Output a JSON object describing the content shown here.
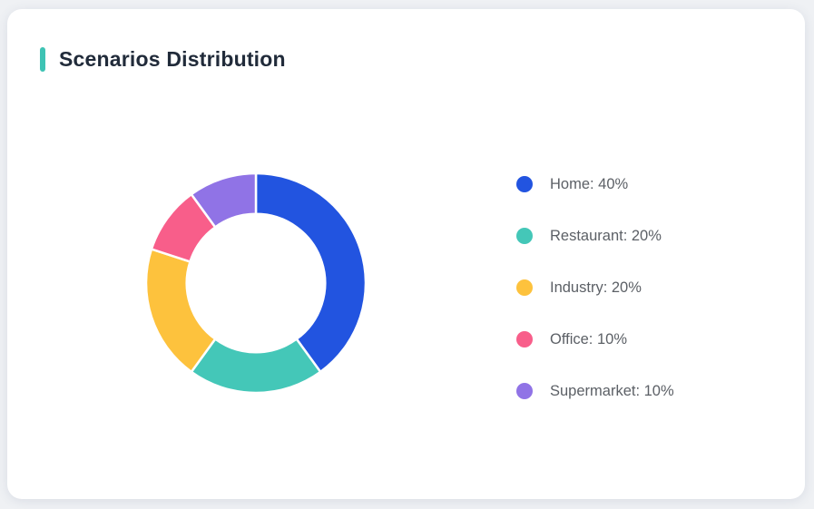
{
  "page": {
    "background": "#eff1f4"
  },
  "card": {
    "background": "#ffffff"
  },
  "header": {
    "title": "Scenarios Distribution",
    "accent_color": "#3ec3b4",
    "title_color": "#212b3a"
  },
  "chart_data": {
    "type": "pie",
    "variant": "donut",
    "title": "Scenarios Distribution",
    "categories": [
      "Home",
      "Restaurant",
      "Industry",
      "Office",
      "Supermarket"
    ],
    "values": [
      40,
      20,
      20,
      10,
      10
    ],
    "unit": "%",
    "colors": [
      "#2254e0",
      "#44c7b8",
      "#fdc23d",
      "#f85e8a",
      "#9073e6"
    ],
    "legend_labels": [
      "Home: 40%",
      "Restaurant: 20%",
      "Industry: 20%",
      "Office: 10%",
      "Supermarket: 10%"
    ],
    "start_angle_deg": 0,
    "direction": "clockwise",
    "inner_radius_ratio": 0.63,
    "segment_gap_color": "#ffffff",
    "legend_position": "right"
  }
}
